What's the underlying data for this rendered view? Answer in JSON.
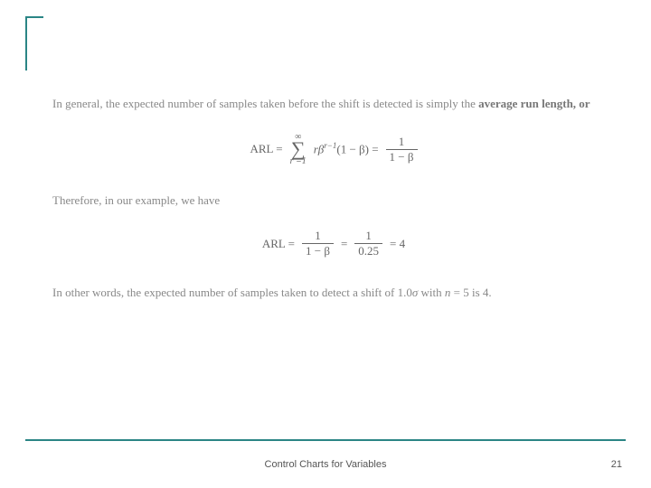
{
  "accent_color": "#2a8585",
  "body": {
    "p1_part1": "In general, the expected number of samples taken before the shift is detected is simply the ",
    "p1_bold": "average run length, or",
    "eq1_lhs": "ARL =",
    "eq1_sum_top": "∞",
    "eq1_sum_bot": "r =1",
    "eq1_term": "rβ",
    "eq1_exp": "r−1",
    "eq1_paren": "(1 − β) =",
    "eq1_frac_num": "1",
    "eq1_frac_den": "1 − β",
    "p2": "Therefore, in our example, we have",
    "eq2_lhs": "ARL =",
    "eq2_f1_num": "1",
    "eq2_f1_den": "1 − β",
    "eq2_eq": "=",
    "eq2_f2_num": "1",
    "eq2_f2_den": "0.25",
    "eq2_rhs": "= 4",
    "p3_a": "In other words, the expected number of samples taken to detect a shift of 1.0",
    "p3_sigma": "σ",
    "p3_b": " with ",
    "p3_n": "n",
    "p3_c": " = 5 is 4."
  },
  "footer": {
    "title": "Control Charts for Variables",
    "page": "21"
  }
}
